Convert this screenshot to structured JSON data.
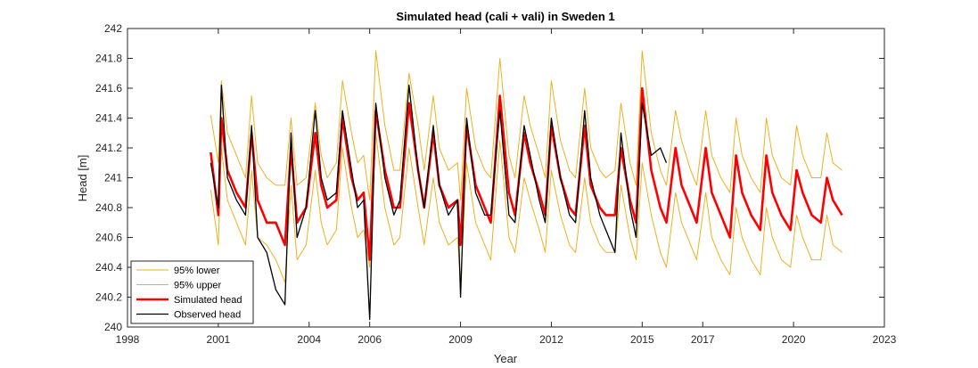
{
  "chart_data": {
    "type": "line",
    "title": "Simulated head (cali + vali) in Sweden 1",
    "xlabel": "Year",
    "ylabel": "Head [m]",
    "xlim": [
      1998,
      2023
    ],
    "ylim": [
      240,
      242
    ],
    "x_ticks": [
      1998,
      2001,
      2004,
      2006,
      2009,
      2012,
      2015,
      2017,
      2020,
      2023
    ],
    "y_ticks": [
      240,
      240.2,
      240.4,
      240.6,
      240.8,
      241,
      241.2,
      241.4,
      241.6,
      241.8,
      242
    ],
    "y_tick_labels": [
      "240",
      "240.2",
      "240.4",
      "240.6",
      "240.8",
      "241",
      "241.2",
      "241.4",
      "241.6",
      "241.8",
      "242"
    ],
    "grid": false,
    "legend_position": "bottom-left",
    "series": [
      {
        "name": "95% lower",
        "color": "#EDB120",
        "x": [
          2000.75,
          2001.0,
          2001.1,
          2001.3,
          2001.6,
          2001.9,
          2002.1,
          2002.3,
          2002.6,
          2002.9,
          2003.2,
          2003.4,
          2003.6,
          2003.9,
          2004.2,
          2004.4,
          2004.6,
          2004.9,
          2005.1,
          2005.4,
          2005.6,
          2005.8,
          2006.0,
          2006.2,
          2006.5,
          2006.8,
          2007.0,
          2007.3,
          2007.6,
          2007.8,
          2008.1,
          2008.3,
          2008.6,
          2008.9,
          2009.0,
          2009.2,
          2009.5,
          2009.8,
          2010.0,
          2010.3,
          2010.6,
          2010.8,
          2011.1,
          2011.3,
          2011.6,
          2011.8,
          2012.0,
          2012.3,
          2012.6,
          2012.8,
          2013.1,
          2013.3,
          2013.6,
          2013.8,
          2014.1,
          2014.3,
          2014.6,
          2014.8,
          2015.0,
          2015.3,
          2015.6,
          2015.8,
          2016.1,
          2016.3,
          2016.6,
          2016.8,
          2017.1,
          2017.3,
          2017.6,
          2017.9,
          2018.1,
          2018.3,
          2018.6,
          2018.9,
          2019.1,
          2019.3,
          2019.6,
          2019.9,
          2020.1,
          2020.3,
          2020.6,
          2020.9,
          2021.1,
          2021.3,
          2021.6
        ],
        "values": [
          240.92,
          240.55,
          241.2,
          240.85,
          240.7,
          240.55,
          241.05,
          240.6,
          240.55,
          240.45,
          240.3,
          240.95,
          240.45,
          240.55,
          241.05,
          240.7,
          240.55,
          240.65,
          241.2,
          240.8,
          240.6,
          240.65,
          240.4,
          241.3,
          240.8,
          240.55,
          240.6,
          241.2,
          240.8,
          240.55,
          241.0,
          240.7,
          240.55,
          240.6,
          240.3,
          241.1,
          240.7,
          240.55,
          240.45,
          241.25,
          240.6,
          240.5,
          241.0,
          240.85,
          240.65,
          240.5,
          241.05,
          240.75,
          240.55,
          240.5,
          241.0,
          240.7,
          240.55,
          240.5,
          240.5,
          240.95,
          240.6,
          240.45,
          241.1,
          240.75,
          240.5,
          240.4,
          240.9,
          240.7,
          240.55,
          240.45,
          240.9,
          240.6,
          240.45,
          240.35,
          240.8,
          240.6,
          240.45,
          240.35,
          240.8,
          240.6,
          240.45,
          240.4,
          240.75,
          240.6,
          240.45,
          240.45,
          240.75,
          240.55,
          240.5
        ]
      },
      {
        "name": "95% upper",
        "color": "#EDB120",
        "x": [
          2000.75,
          2001.0,
          2001.1,
          2001.3,
          2001.6,
          2001.9,
          2002.1,
          2002.3,
          2002.6,
          2002.9,
          2003.2,
          2003.4,
          2003.6,
          2003.9,
          2004.2,
          2004.4,
          2004.6,
          2004.9,
          2005.1,
          2005.4,
          2005.6,
          2005.8,
          2006.0,
          2006.2,
          2006.5,
          2006.8,
          2007.0,
          2007.3,
          2007.6,
          2007.8,
          2008.1,
          2008.3,
          2008.6,
          2008.9,
          2009.0,
          2009.2,
          2009.5,
          2009.8,
          2010.0,
          2010.3,
          2010.6,
          2010.8,
          2011.1,
          2011.3,
          2011.6,
          2011.8,
          2012.0,
          2012.3,
          2012.6,
          2012.8,
          2013.1,
          2013.3,
          2013.6,
          2013.8,
          2014.1,
          2014.3,
          2014.6,
          2014.8,
          2015.0,
          2015.3,
          2015.6,
          2015.8,
          2016.1,
          2016.3,
          2016.6,
          2016.8,
          2017.1,
          2017.3,
          2017.6,
          2017.9,
          2018.1,
          2018.3,
          2018.6,
          2018.9,
          2019.1,
          2019.3,
          2019.6,
          2019.9,
          2020.1,
          2020.3,
          2020.6,
          2020.9,
          2021.1,
          2021.3,
          2021.6
        ],
        "values": [
          241.42,
          241.1,
          241.65,
          241.3,
          241.15,
          241.0,
          241.55,
          241.1,
          241.0,
          240.95,
          240.95,
          241.4,
          240.95,
          241.0,
          241.5,
          241.15,
          241.0,
          241.1,
          241.65,
          241.3,
          241.1,
          241.15,
          240.85,
          241.85,
          241.35,
          241.05,
          241.05,
          241.7,
          241.35,
          241.05,
          241.55,
          241.2,
          241.05,
          241.1,
          240.85,
          241.6,
          241.2,
          241.05,
          241.0,
          241.8,
          241.15,
          241.0,
          241.55,
          241.35,
          241.15,
          241.0,
          241.65,
          241.25,
          241.05,
          241.0,
          241.6,
          241.2,
          241.05,
          241.0,
          241.05,
          241.5,
          241.1,
          240.95,
          241.85,
          241.3,
          241.05,
          240.95,
          241.45,
          241.25,
          241.05,
          240.95,
          241.45,
          241.15,
          241.0,
          240.9,
          241.4,
          241.15,
          241.0,
          240.9,
          241.4,
          241.15,
          241.0,
          240.95,
          241.35,
          241.15,
          241.0,
          241.0,
          241.3,
          241.1,
          241.05
        ]
      },
      {
        "name": "Simulated head",
        "color": "#FF0000",
        "x": [
          2000.75,
          2001.0,
          2001.1,
          2001.3,
          2001.6,
          2001.9,
          2002.1,
          2002.3,
          2002.6,
          2002.9,
          2003.2,
          2003.4,
          2003.6,
          2003.9,
          2004.2,
          2004.4,
          2004.6,
          2004.9,
          2005.1,
          2005.4,
          2005.6,
          2005.8,
          2006.0,
          2006.2,
          2006.5,
          2006.8,
          2007.0,
          2007.3,
          2007.6,
          2007.8,
          2008.1,
          2008.3,
          2008.6,
          2008.9,
          2009.0,
          2009.2,
          2009.5,
          2009.8,
          2010.0,
          2010.3,
          2010.6,
          2010.8,
          2011.1,
          2011.3,
          2011.6,
          2011.8,
          2012.0,
          2012.3,
          2012.6,
          2012.8,
          2013.1,
          2013.3,
          2013.6,
          2013.8,
          2014.1,
          2014.3,
          2014.6,
          2014.8,
          2015.0,
          2015.3,
          2015.6,
          2015.8,
          2016.1,
          2016.3,
          2016.6,
          2016.8,
          2017.1,
          2017.3,
          2017.6,
          2017.9,
          2018.1,
          2018.3,
          2018.6,
          2018.9,
          2019.1,
          2019.3,
          2019.6,
          2019.9,
          2020.1,
          2020.3,
          2020.6,
          2020.9,
          2021.1,
          2021.3,
          2021.6
        ],
        "values": [
          241.17,
          240.75,
          241.4,
          241.05,
          240.9,
          240.8,
          241.3,
          240.85,
          240.7,
          240.7,
          240.55,
          241.2,
          240.7,
          240.8,
          241.3,
          240.95,
          240.8,
          240.85,
          241.4,
          241.0,
          240.85,
          240.9,
          240.45,
          241.45,
          241.05,
          240.8,
          240.8,
          241.5,
          241.05,
          240.8,
          241.3,
          240.95,
          240.8,
          240.85,
          240.55,
          241.35,
          240.95,
          240.8,
          240.7,
          241.55,
          240.9,
          240.75,
          241.3,
          241.1,
          240.9,
          240.75,
          241.35,
          241.0,
          240.8,
          240.75,
          241.35,
          240.95,
          240.8,
          240.75,
          240.75,
          241.2,
          240.85,
          240.7,
          241.6,
          241.05,
          240.8,
          240.7,
          241.2,
          240.95,
          240.8,
          240.7,
          241.2,
          240.9,
          240.75,
          240.6,
          241.15,
          240.9,
          240.75,
          240.65,
          241.15,
          240.9,
          240.75,
          240.65,
          241.05,
          240.9,
          240.75,
          240.7,
          241.0,
          240.85,
          240.75
        ]
      },
      {
        "name": "Observed head",
        "color": "#000000",
        "x": [
          2000.75,
          2001.0,
          2001.1,
          2001.3,
          2001.6,
          2001.9,
          2002.1,
          2002.3,
          2002.6,
          2002.9,
          2003.2,
          2003.4,
          2003.6,
          2003.9,
          2004.2,
          2004.4,
          2004.6,
          2004.9,
          2005.1,
          2005.4,
          2005.6,
          2005.8,
          2006.0,
          2006.2,
          2006.5,
          2006.8,
          2007.0,
          2007.3,
          2007.6,
          2007.8,
          2008.1,
          2008.3,
          2008.6,
          2008.9,
          2009.0,
          2009.2,
          2009.5,
          2009.8,
          2010.0,
          2010.3,
          2010.6,
          2010.8,
          2011.1,
          2011.3,
          2011.6,
          2011.8,
          2012.0,
          2012.3,
          2012.6,
          2012.8,
          2013.1,
          2013.3,
          2013.6,
          2013.8,
          2014.1,
          2014.3,
          2014.6,
          2014.8,
          2015.0,
          2015.3,
          2015.6,
          2015.8
        ],
        "values": [
          241.1,
          240.8,
          241.62,
          241.0,
          240.85,
          240.75,
          241.35,
          240.6,
          240.5,
          240.25,
          240.15,
          241.3,
          240.6,
          240.8,
          241.45,
          241.0,
          240.85,
          240.9,
          241.45,
          241.05,
          240.8,
          240.85,
          240.05,
          241.5,
          241.0,
          240.75,
          240.85,
          241.62,
          241.05,
          240.8,
          241.35,
          240.95,
          240.75,
          240.85,
          240.2,
          241.4,
          240.9,
          240.75,
          240.75,
          241.45,
          240.75,
          240.7,
          241.35,
          241.15,
          240.85,
          240.7,
          241.4,
          241.0,
          240.75,
          240.7,
          241.45,
          241.0,
          240.75,
          240.65,
          240.5,
          241.3,
          240.8,
          240.6,
          241.5,
          241.15,
          241.2,
          241.1
        ]
      }
    ]
  }
}
